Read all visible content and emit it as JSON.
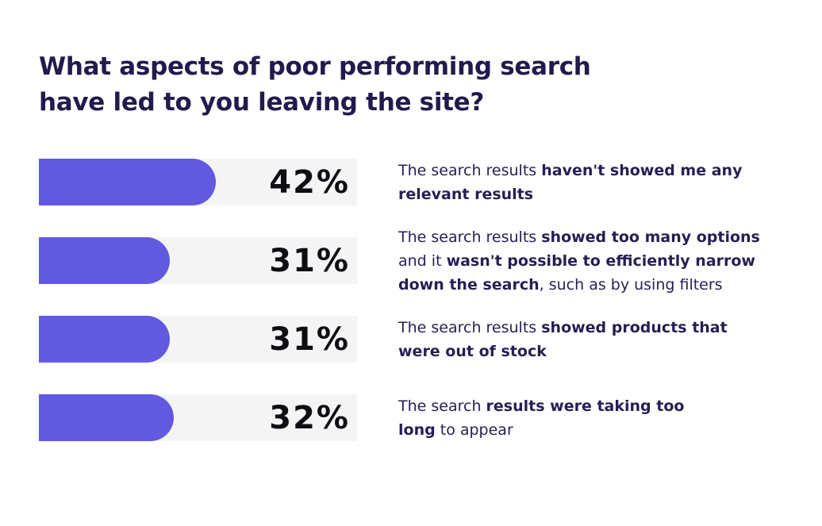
{
  "text_color": "#251F54",
  "title": {
    "line1": "What aspects of poor performing search",
    "line2": "have led to you leaving the site?",
    "color": "#211B4D"
  },
  "chart_data": {
    "type": "bar",
    "orientation": "horizontal",
    "title": "What aspects of poor performing search have led to you leaving the site?",
    "categories": [
      "The search results haven't showed me any relevant results",
      "The search results showed too many options and it wasn't possible to efficiently narrow down the search, such as by using filters",
      "The search results showed products that were out of stock",
      "The search results were taking too long to appear"
    ],
    "values": [
      42,
      31,
      31,
      32
    ],
    "value_labels": [
      "42%",
      "31%",
      "31%",
      "32%"
    ],
    "unit": "%",
    "bar_color": "#6159E0",
    "track_color": "#F4F4F5",
    "value_label_color": "#0D0D12",
    "legend": "none",
    "grid": false,
    "xlim": [
      0,
      75
    ]
  },
  "rows": [
    {
      "value": 42,
      "percent": "42%",
      "description_parts": [
        {
          "text": "The search results ",
          "bold": false
        },
        {
          "text": "haven't showed me any",
          "bold": true
        },
        {
          "br": true
        },
        {
          "text": "relevant results",
          "bold": true
        }
      ]
    },
    {
      "value": 31,
      "percent": "31%",
      "description_parts": [
        {
          "text": "The search results ",
          "bold": false
        },
        {
          "text": "showed too many options",
          "bold": true
        },
        {
          "br": true
        },
        {
          "text": "and it ",
          "bold": false
        },
        {
          "text": "wasn't possible to efficiently narrow",
          "bold": true
        },
        {
          "br": true
        },
        {
          "text": "down the search",
          "bold": true
        },
        {
          "text": ", such as by using filters",
          "bold": false
        }
      ]
    },
    {
      "value": 31,
      "percent": "31%",
      "description_parts": [
        {
          "text": "The search results ",
          "bold": false
        },
        {
          "text": "showed products that",
          "bold": true
        },
        {
          "br": true
        },
        {
          "text": "were out of stock",
          "bold": true
        }
      ]
    },
    {
      "value": 32,
      "percent": "32%",
      "description_parts": [
        {
          "text": "The search ",
          "bold": false
        },
        {
          "text": "results were taking too",
          "bold": true
        },
        {
          "br": true
        },
        {
          "text": "long",
          "bold": true
        },
        {
          "text": " to appear",
          "bold": false
        }
      ]
    }
  ]
}
